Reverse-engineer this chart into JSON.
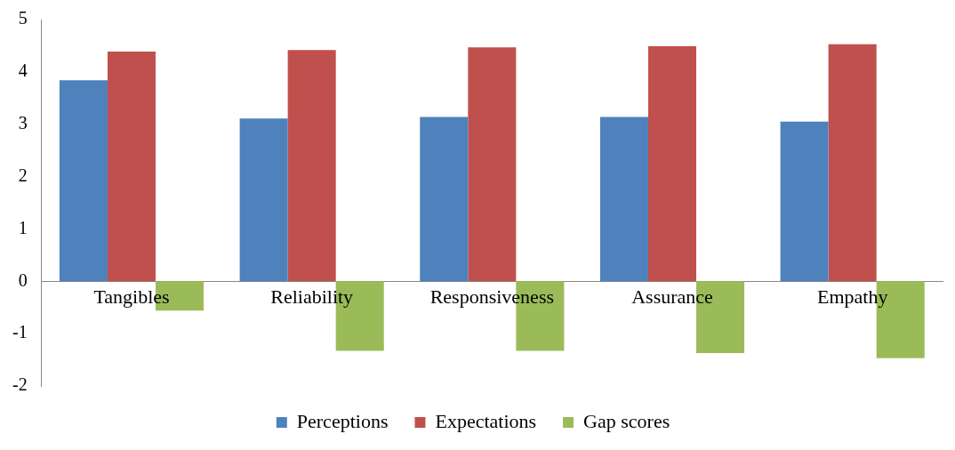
{
  "chart_data": {
    "type": "bar",
    "categories": [
      "Tangibles",
      "Reliability",
      "Responsiveness",
      "Assurance",
      "Empathy"
    ],
    "series": [
      {
        "name": "Perceptions",
        "color": "#4f81bd",
        "values": [
          3.84,
          3.11,
          3.14,
          3.14,
          3.05
        ]
      },
      {
        "name": "Expectations",
        "color": "#c0504d",
        "values": [
          4.39,
          4.42,
          4.47,
          4.49,
          4.53
        ]
      },
      {
        "name": "Gap scores",
        "color": "#9bbb59",
        "values": [
          -0.56,
          -1.33,
          -1.33,
          -1.37,
          -1.47
        ]
      }
    ],
    "ylim": [
      -2,
      5
    ],
    "yticks": [
      -2,
      -1,
      0,
      1,
      2,
      3,
      4,
      5
    ],
    "grid": false,
    "legend": "bottom"
  }
}
